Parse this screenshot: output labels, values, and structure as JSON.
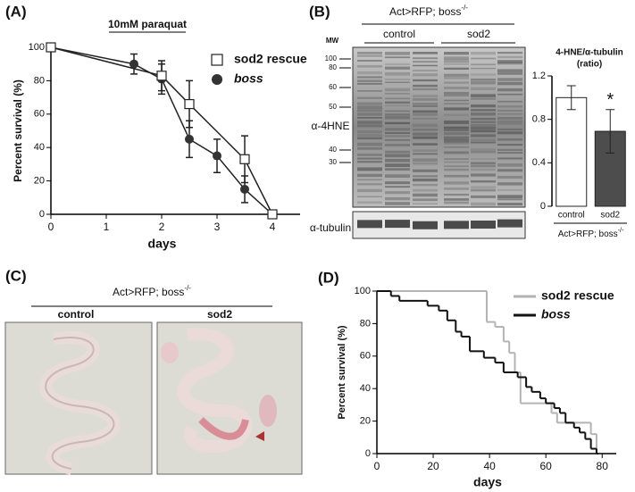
{
  "panel_labels": [
    "(A)",
    "(B)",
    "(C)",
    "(D)"
  ],
  "chart_data": [
    {
      "type": "line",
      "title": "10mM paraquat",
      "x_label": "days",
      "y_label": "Percent survival (%)",
      "xlim": [
        0,
        4.5
      ],
      "xticks": [
        0,
        1,
        2,
        3,
        4
      ],
      "ylim": [
        0,
        100
      ],
      "yticks": [
        0,
        20,
        40,
        60,
        80,
        100
      ],
      "series": [
        {
          "name": "sod2 rescue",
          "color": "#ffffff",
          "marker": "square",
          "x": [
            0,
            2,
            2.5,
            3.5,
            4
          ],
          "values": [
            100,
            83,
            66,
            33,
            0
          ],
          "errors": [
            0,
            9,
            14,
            14,
            0
          ]
        },
        {
          "name": "boss",
          "color": "#333333",
          "marker": "circle",
          "x": [
            0,
            1.5,
            2,
            2.5,
            3,
            3.5,
            4
          ],
          "values": [
            100,
            90,
            81,
            45,
            35,
            15,
            0
          ],
          "errors": [
            0,
            6,
            9,
            11,
            10,
            8,
            0
          ]
        }
      ]
    },
    {
      "type": "bar",
      "y_label": "4-HNE/α-tubulin",
      "y_label_unit": "(ratio)",
      "categories": [
        "control",
        "sod2"
      ],
      "values": [
        1.0,
        0.69
      ],
      "errors": [
        0.11,
        0.2
      ],
      "colors": [
        "#ffffff",
        "#4d4d4d"
      ],
      "ylim": [
        0,
        1.2
      ],
      "yticks": [
        0,
        0.4,
        0.8,
        1.2
      ],
      "annotation": "*",
      "group_label": "Act>RFP; boss",
      "group_label_sup": "-/-"
    },
    {
      "type": "step",
      "x_label": "days",
      "y_label": "Percent survival (%)",
      "xlim": [
        0,
        85
      ],
      "xticks": [
        0,
        20,
        40,
        60,
        80
      ],
      "ylim": [
        0,
        100
      ],
      "yticks": [
        0,
        20,
        40,
        60,
        80,
        100
      ],
      "series": [
        {
          "name": "sod2 rescue",
          "color": "#b3b3b3",
          "x": [
            0,
            39,
            42,
            45,
            47,
            49,
            51,
            62,
            64,
            76,
            78
          ],
          "values": [
            100,
            81,
            78,
            69,
            62,
            50,
            31,
            25,
            19,
            12,
            0
          ]
        },
        {
          "name": "boss",
          "color": "#111111",
          "x": [
            0,
            5,
            8,
            18,
            22,
            25,
            28,
            30,
            33,
            38,
            42,
            45,
            50,
            53,
            55,
            58,
            60,
            63,
            65,
            67,
            70,
            72,
            74,
            76,
            78
          ],
          "values": [
            100,
            97,
            94,
            91,
            88,
            82,
            75,
            72,
            63,
            59,
            56,
            50,
            47,
            41,
            38,
            34,
            31,
            28,
            25,
            19,
            16,
            13,
            9,
            3,
            0
          ]
        }
      ]
    }
  ],
  "blot": {
    "header": "Act>RFP; boss",
    "header_sup": "-/-",
    "groups": [
      "control",
      "sod2"
    ],
    "mw_title": "MW",
    "mw_markers": [
      100,
      80,
      60,
      50,
      40,
      30
    ],
    "probe": "α-4HNE",
    "loading": "α-tubulin"
  },
  "tissue": {
    "header": "Act>RFP; boss",
    "header_sup": "-/-",
    "groups": [
      "control",
      "sod2"
    ]
  }
}
